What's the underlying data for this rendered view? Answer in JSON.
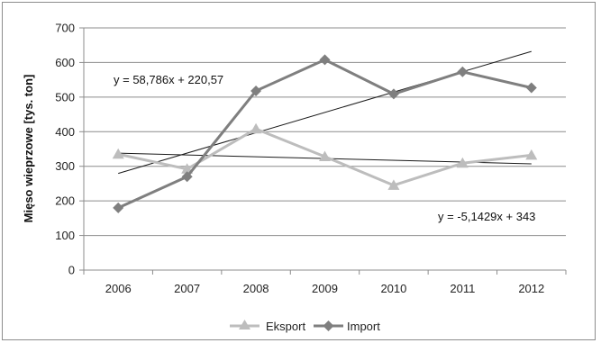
{
  "chart_data": {
    "type": "line",
    "title": "",
    "xlabel": "",
    "ylabel": "Mięso wieprzowe [tys. ton]",
    "categories": [
      "2006",
      "2007",
      "2008",
      "2009",
      "2010",
      "2011",
      "2012"
    ],
    "ylim": [
      0,
      700
    ],
    "yticks": [
      "0",
      "100",
      "200",
      "300",
      "400",
      "500",
      "600",
      "700"
    ],
    "grid": true,
    "legend_position": "bottom",
    "series": [
      {
        "name": "Eksport",
        "values": [
          335,
          292,
          408,
          328,
          245,
          309,
          332
        ],
        "color": "#bdbdbd",
        "marker": "triangle"
      },
      {
        "name": "Import",
        "values": [
          180,
          270,
          518,
          608,
          509,
          573,
          527
        ],
        "color": "#7f7f7f",
        "marker": "diamond"
      }
    ],
    "trendlines": [
      {
        "series": "Import",
        "slope": 58.786,
        "intercept": 220.57,
        "label": "y = 58,786x + 220,57"
      },
      {
        "series": "Eksport",
        "slope": -5.1429,
        "intercept": 343,
        "label": "y = -5,1429x + 343"
      }
    ]
  }
}
